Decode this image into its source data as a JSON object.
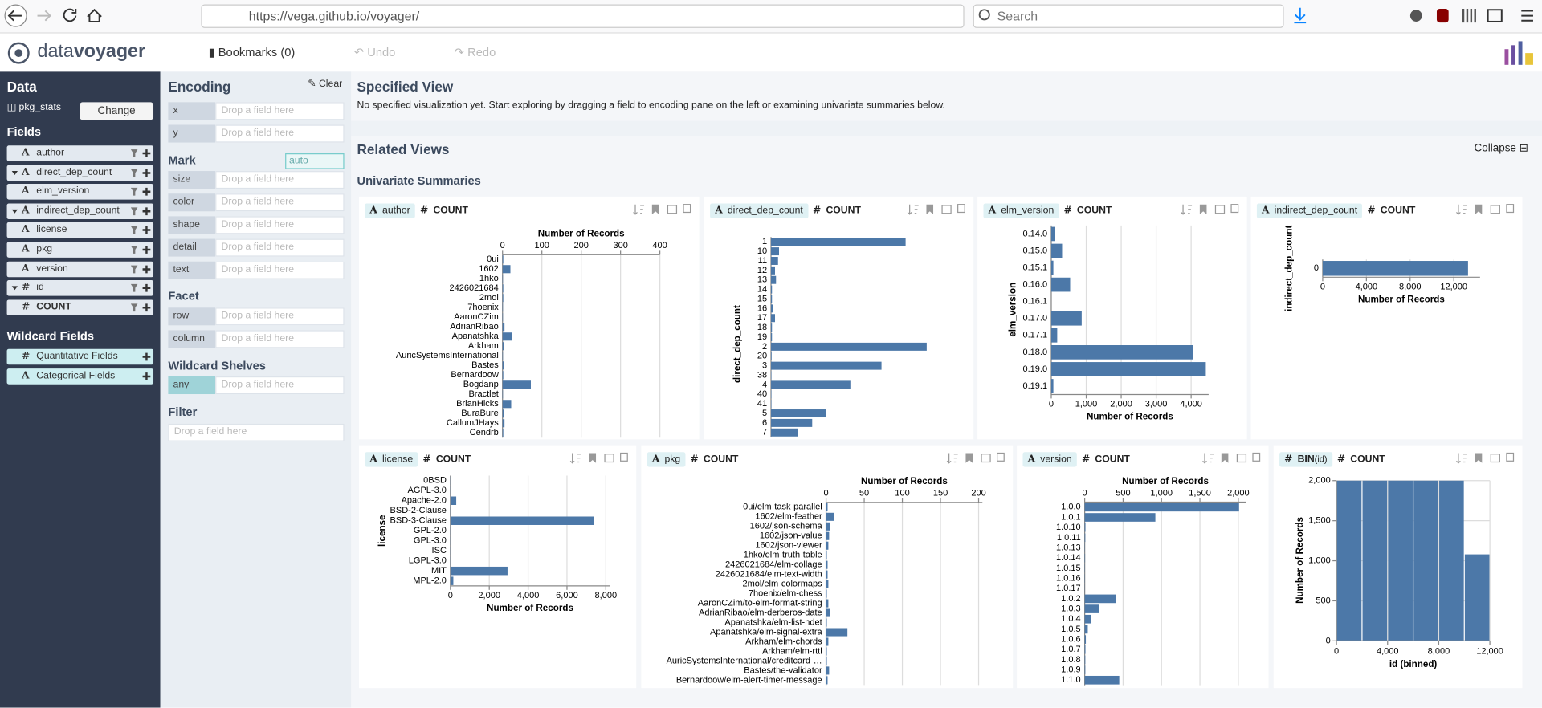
{
  "browser": {
    "url": "https://vega.github.io/voyager/",
    "search": "Search"
  },
  "header": {
    "logo_data": "data",
    "logo_voyager": "voyager",
    "bookmarks": "Bookmarks (0)",
    "undo": "Undo",
    "redo": "Redo"
  },
  "data_pane": {
    "title": "Data",
    "dataset": "pkg_stats",
    "change": "Change",
    "fields_title": "Fields",
    "fields": [
      {
        "icon": "A",
        "name": "author"
      },
      {
        "icon": "A",
        "name": "direct_dep_count",
        "expandable": true
      },
      {
        "icon": "A",
        "name": "elm_version"
      },
      {
        "icon": "A",
        "name": "indirect_dep_count",
        "expandable": true
      },
      {
        "icon": "A",
        "name": "license"
      },
      {
        "icon": "A",
        "name": "pkg"
      },
      {
        "icon": "A",
        "name": "version"
      },
      {
        "icon": "#",
        "name": "id",
        "expandable": true
      },
      {
        "icon": "#",
        "name": "COUNT",
        "bold": true
      }
    ],
    "wildcard_title": "Wildcard Fields",
    "wildcards": [
      {
        "icon": "#",
        "name": "Quantitative Fields"
      },
      {
        "icon": "A",
        "name": "Categorical Fields"
      }
    ]
  },
  "encoding_pane": {
    "title": "Encoding",
    "clear": "Clear",
    "placeholder": "Drop a field here",
    "channels": [
      "x",
      "y"
    ],
    "mark_title": "Mark",
    "mark": "auto",
    "mark_channels": [
      "size",
      "color",
      "shape",
      "detail",
      "text"
    ],
    "facet_title": "Facet",
    "facet_channels": [
      "row",
      "column"
    ],
    "wildcard_title": "Wildcard Shelves",
    "wildcard_channels": [
      "any"
    ],
    "filter_title": "Filter"
  },
  "specified_view": {
    "title": "Specified View",
    "message": "No specified visualization yet. Start exploring by dragging a field to encoding pane on the left or examining univariate summaries below."
  },
  "related_views": {
    "title": "Related Views",
    "collapse": "Collapse",
    "section": "Univariate Summaries"
  },
  "chart_data": [
    {
      "type": "bar",
      "field_icon": "A",
      "field": "author",
      "measure_icon": "#",
      "measure": "COUNT",
      "color": "#4c78a8",
      "grid": true,
      "categories": [
        "0ui",
        "1602",
        "1hko",
        "2426021684",
        "2mol",
        "7hoenix",
        "AaronCZim",
        "AdrianRibao",
        "Apanatshka",
        "Arkham",
        "AuricSystemsInternational",
        "Bastes",
        "Bernardoow",
        "Bogdanp",
        "Bractlet",
        "BrianHicks",
        "BuraBure",
        "CallumJHays",
        "Cendrb"
      ],
      "values": [
        2,
        20,
        1,
        2,
        2,
        1,
        1,
        5,
        25,
        3,
        1,
        3,
        2,
        72,
        1,
        22,
        3,
        5,
        2
      ],
      "xlim": [
        0,
        400
      ],
      "xticks": [
        0,
        100,
        200,
        300,
        400
      ],
      "x_title": "Number of Records",
      "x_axis": "top"
    },
    {
      "type": "bar",
      "field_icon": "A",
      "field": "direct_dep_count",
      "measure_icon": "#",
      "measure": "COUNT",
      "color": "#4c78a8",
      "grid": true,
      "categories": [
        "1",
        "10",
        "11",
        "12",
        "13",
        "14",
        "15",
        "16",
        "17",
        "18",
        "19",
        "2",
        "20",
        "3",
        "38",
        "4",
        "40",
        "41",
        "5",
        "6",
        "7"
      ],
      "values": [
        3350,
        200,
        175,
        100,
        125,
        25,
        25,
        50,
        100,
        25,
        25,
        3875,
        15,
        2750,
        10,
        1975,
        10,
        10,
        1375,
        1025,
        675
      ],
      "y_title": "direct_dep_count"
    },
    {
      "type": "bar",
      "field_icon": "A",
      "field": "elm_version",
      "measure_icon": "#",
      "measure": "COUNT",
      "color": "#4c78a8",
      "grid": true,
      "categories": [
        "0.14.0",
        "0.15.0",
        "0.15.1",
        "0.16.0",
        "0.16.1",
        "0.17.0",
        "0.17.1",
        "0.18.0",
        "0.19.0",
        "0.19.1"
      ],
      "values": [
        110,
        310,
        60,
        540,
        0,
        870,
        170,
        4060,
        4420,
        60
      ],
      "xlim": [
        0,
        4500
      ],
      "xticks": [
        0,
        {
          "value": 1000,
          "label": "1,000"
        },
        {
          "value": 2000,
          "label": "2,000"
        },
        {
          "value": 3000,
          "label": "3,000"
        },
        {
          "value": 4000,
          "label": "4,000"
        }
      ],
      "x_title": "Number of Records",
      "x_axis": "bottom",
      "y_title": "elm_version"
    },
    {
      "type": "bar",
      "field_icon": "A",
      "field": "indirect_dep_count",
      "measure_icon": "#",
      "measure": "COUNT",
      "color": "#4c78a8",
      "grid": true,
      "categories": [
        "0"
      ],
      "values": [
        13300
      ],
      "xlim": [
        0,
        14400
      ],
      "xticks": [
        0,
        {
          "value": 4000,
          "label": "4,000"
        },
        {
          "value": 8000,
          "label": "8,000"
        },
        {
          "value": 12000,
          "label": "12,000"
        }
      ],
      "x_title": "Number of Records",
      "x_axis": "bottom",
      "y_title": "indirect_dep_count"
    },
    {
      "type": "bar",
      "field_icon": "A",
      "field": "license",
      "measure_icon": "#",
      "measure": "COUNT",
      "color": "#4c78a8",
      "grid": true,
      "categories": [
        "0BSD",
        "AGPL-3.0",
        "Apache-2.0",
        "BSD-2-Clause",
        "BSD-3-Clause",
        "GPL-2.0",
        "GPL-3.0",
        "ISC",
        "LGPL-3.0",
        "MIT",
        "MPL-2.0"
      ],
      "values": [
        10,
        20,
        300,
        20,
        7400,
        20,
        30,
        10,
        20,
        2940,
        150
      ],
      "xlim": [
        0,
        8200
      ],
      "xticks": [
        0,
        {
          "value": 2000,
          "label": "2,000"
        },
        {
          "value": 4000,
          "label": "4,000"
        },
        {
          "value": 6000,
          "label": "6,000"
        },
        {
          "value": 8000,
          "label": "8,000"
        }
      ],
      "x_title": "Number of Records",
      "x_axis": "bottom",
      "y_title": "license"
    },
    {
      "type": "bar",
      "field_icon": "A",
      "field": "pkg",
      "measure_icon": "#",
      "measure": "COUNT",
      "color": "#4c78a8",
      "grid": true,
      "categories": [
        "0ui/elm-task-parallel",
        "1602/elm-feather",
        "1602/json-schema",
        "1602/json-value",
        "1602/json-viewer",
        "1hko/elm-truth-table",
        "2426021684/elm-collage",
        "2426021684/elm-text-width",
        "2mol/elm-colormaps",
        "7hoenix/elm-chess",
        "AaronCZim/to-elm-format-string",
        "AdrianRibao/elm-derberos-date",
        "Apanatshka/elm-list-ndet",
        "Apanatshka/elm-signal-extra",
        "Arkham/elm-chords",
        "Arkham/elm-rttl",
        "AuricSystemsInternational/creditcard-…",
        "Bastes/the-validator",
        "Bernardoow/elm-alert-timer-message"
      ],
      "values": [
        2,
        10,
        5,
        4,
        3,
        1,
        2,
        2,
        3,
        1,
        3,
        5,
        1,
        28,
        3,
        1,
        1,
        4,
        2
      ],
      "xlim": [
        0,
        205
      ],
      "xticks": [
        0,
        50,
        100,
        150,
        200
      ],
      "x_title": "Number of Records",
      "x_axis": "top"
    },
    {
      "type": "bar",
      "field_icon": "A",
      "field": "version",
      "measure_icon": "#",
      "measure": "COUNT",
      "color": "#4c78a8",
      "grid": true,
      "categories": [
        "1.0.0",
        "1.0.1",
        "1.0.10",
        "1.0.11",
        "1.0.13",
        "1.0.14",
        "1.0.15",
        "1.0.16",
        "1.0.17",
        "1.0.2",
        "1.0.3",
        "1.0.4",
        "1.0.5",
        "1.0.6",
        "1.0.7",
        "1.0.8",
        "1.0.9",
        "1.1.0"
      ],
      "values": [
        2010,
        920,
        10,
        8,
        3,
        5,
        3,
        3,
        2,
        410,
        190,
        80,
        40,
        15,
        10,
        8,
        8,
        450
      ],
      "xlim": [
        0,
        2100
      ],
      "xticks": [
        0,
        500,
        {
          "value": 1000,
          "label": "1,000"
        },
        {
          "value": 1500,
          "label": "1,500"
        },
        {
          "value": 2000,
          "label": "2,000"
        }
      ],
      "x_title": "Number of Records",
      "x_axis": "top"
    },
    {
      "type": "histogram",
      "field_icon": "#",
      "field": "BIN",
      "field_arg": "(id)",
      "measure_icon": "#",
      "measure": "COUNT",
      "color": "#4c78a8",
      "grid": true,
      "bins": [
        0,
        2000,
        4000,
        6000,
        8000,
        10000,
        12000
      ],
      "values": [
        2000,
        2000,
        2000,
        2000,
        2000,
        1080
      ],
      "xlim": [
        0,
        12000
      ],
      "xticks": [
        0,
        {
          "value": 4000,
          "label": "4,000"
        },
        {
          "value": 8000,
          "label": "8,000"
        },
        {
          "value": 12000,
          "label": "12,000"
        }
      ],
      "ylim": [
        0,
        2000
      ],
      "yticks": [
        0,
        500,
        {
          "value": 1000,
          "label": "1,000"
        },
        {
          "value": 1500,
          "label": "1,500"
        },
        {
          "value": 2000,
          "label": "2,000"
        }
      ],
      "x_title": "id (binned)",
      "y_title": "Number of Records"
    }
  ]
}
